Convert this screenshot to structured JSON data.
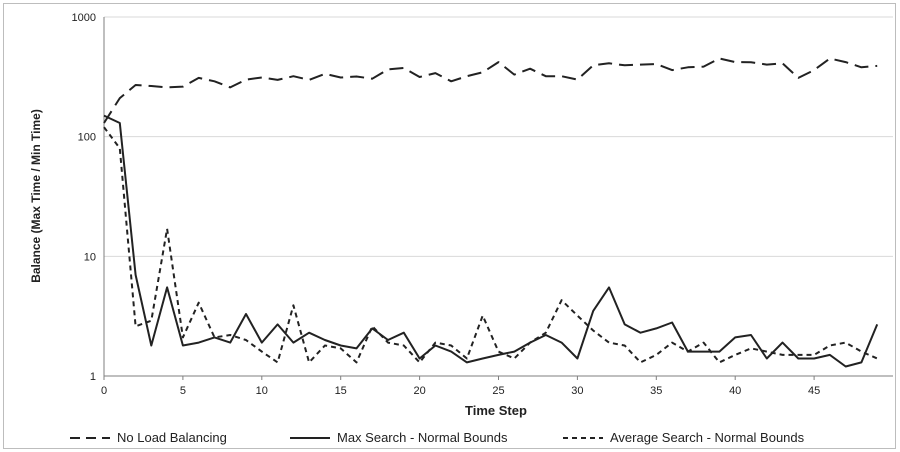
{
  "chart_data": {
    "type": "line",
    "title": "",
    "xlabel": "Time Step",
    "ylabel": "Balance (Max Time / Min Time)",
    "yscale": "log",
    "xlim": [
      0,
      50
    ],
    "ylim": [
      1,
      1000
    ],
    "x_ticks": [
      0,
      5,
      10,
      15,
      20,
      25,
      30,
      35,
      40,
      45
    ],
    "x_tick_labels": [
      "0",
      "5",
      "10",
      "15",
      "20",
      "25",
      "30",
      "35",
      "40",
      "45"
    ],
    "y_ticks": [
      1,
      10,
      100,
      1000
    ],
    "y_tick_labels": [
      "1",
      "10",
      "100",
      "1000"
    ],
    "grid": "horizontal",
    "legend_position": "bottom",
    "x": [
      0,
      1,
      2,
      3,
      4,
      5,
      6,
      7,
      8,
      9,
      10,
      11,
      12,
      13,
      14,
      15,
      16,
      17,
      18,
      19,
      20,
      21,
      22,
      23,
      24,
      25,
      26,
      27,
      28,
      29,
      30,
      31,
      32,
      33,
      34,
      35,
      36,
      37,
      38,
      39,
      40,
      41,
      42,
      43,
      44,
      45,
      46,
      47,
      48,
      49
    ],
    "series": [
      {
        "name": "No Load Balancing",
        "style": "long-dash",
        "color": "#222222",
        "values": [
          130,
          210,
          270,
          265,
          258,
          262,
          310,
          290,
          258,
          300,
          312,
          298,
          320,
          298,
          335,
          312,
          318,
          305,
          365,
          375,
          315,
          340,
          290,
          320,
          345,
          420,
          330,
          370,
          320,
          320,
          300,
          395,
          410,
          395,
          400,
          405,
          360,
          380,
          385,
          450,
          420,
          418,
          400,
          410,
          310,
          360,
          450,
          420,
          380,
          390
        ]
      },
      {
        "name": "Max Search - Normal Bounds",
        "style": "solid",
        "color": "#222222",
        "values": [
          150,
          130,
          7,
          1.8,
          5.5,
          1.8,
          1.9,
          2.1,
          1.9,
          3.3,
          1.9,
          2.7,
          1.9,
          2.3,
          2.0,
          1.8,
          1.7,
          2.5,
          2.0,
          2.3,
          1.4,
          1.8,
          1.6,
          1.3,
          1.4,
          1.5,
          1.6,
          1.9,
          2.2,
          1.9,
          1.4,
          3.5,
          5.5,
          2.7,
          2.3,
          2.5,
          2.8,
          1.6,
          1.6,
          1.6,
          2.1,
          2.2,
          1.4,
          1.9,
          1.4,
          1.4,
          1.5,
          1.2,
          1.3,
          2.7
        ]
      },
      {
        "name": "Average Search - Normal Bounds",
        "style": "short-dash",
        "color": "#222222",
        "values": [
          120,
          80,
          2.6,
          2.9,
          17,
          2.1,
          4.1,
          2.1,
          2.2,
          2.0,
          1.6,
          1.3,
          3.9,
          1.3,
          1.8,
          1.7,
          1.3,
          2.6,
          1.9,
          1.8,
          1.3,
          1.9,
          1.8,
          1.4,
          3.2,
          1.6,
          1.4,
          1.9,
          2.3,
          4.3,
          3.2,
          2.4,
          1.9,
          1.8,
          1.3,
          1.5,
          1.9,
          1.6,
          1.9,
          1.3,
          1.5,
          1.7,
          1.6,
          1.5,
          1.5,
          1.5,
          1.8,
          1.9,
          1.6,
          1.4
        ]
      }
    ]
  }
}
